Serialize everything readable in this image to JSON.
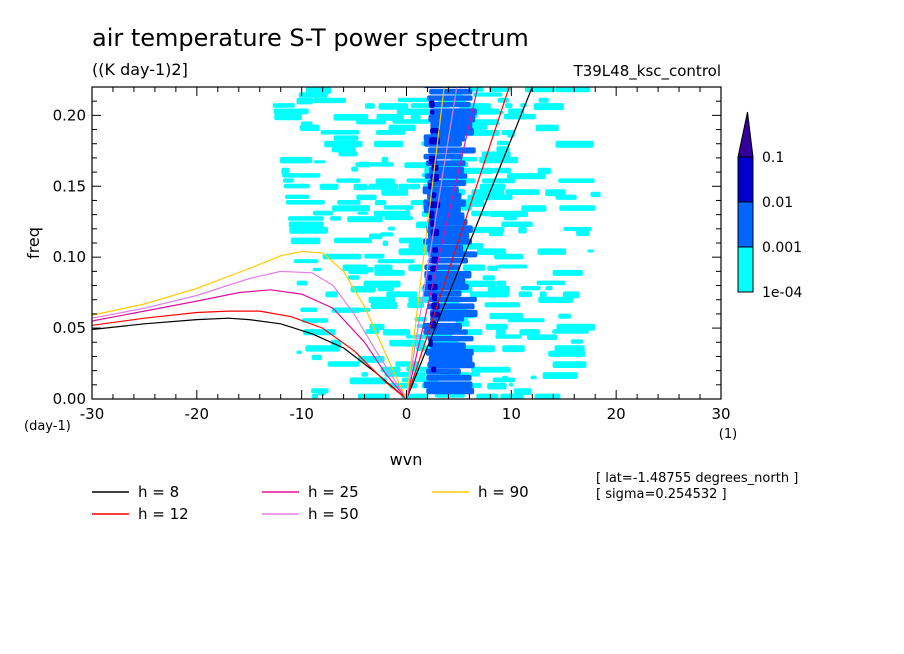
{
  "chart_data": {
    "type": "heatmap",
    "title": "air temperature S-T power spectrum",
    "subtitle": "((K day-1)2]",
    "run_label": "T39L48_ksc_control",
    "xlabel": "wvn",
    "ylabel": "freq",
    "x_unit": "(1)",
    "y_unit": "(day-1)",
    "xlim": [
      -30,
      30
    ],
    "ylim": [
      0,
      0.22
    ],
    "xticks": [
      "-30",
      "-20",
      "-10",
      "0",
      "10",
      "20",
      "30"
    ],
    "yticks": [
      "0.00",
      "0.05",
      "0.10",
      "0.15",
      "0.20"
    ],
    "info_lines": [
      "[ lat=-1.48755 degrees_north ]",
      "[ sigma=0.254532 ]"
    ],
    "colorbar": {
      "labels": [
        "0.1",
        "0.01",
        "0.001",
        "1e-04"
      ],
      "levels": [
        0.0001,
        0.001,
        0.01,
        0.1
      ],
      "colors": [
        "#00ffff",
        "#0066ff",
        "#0000cc",
        "#330099"
      ]
    },
    "spectrum_bands": [
      {
        "level": "1e-04",
        "color": "#00ffff",
        "x_range_low_freq": [
          -9,
          15
        ],
        "x_range_high_freq": [
          -13,
          15
        ]
      },
      {
        "level": "0.001",
        "color": "#0066ff",
        "x_range": [
          1.5,
          7
        ]
      },
      {
        "level": "0.01",
        "color": "#0000cc",
        "x_range": [
          2,
          3.5
        ]
      }
    ],
    "series": [
      {
        "name": "h = 8",
        "color": "#000000",
        "west_x": [
          -30,
          -25,
          -20,
          -17,
          -15,
          -12,
          -9,
          -6,
          -3,
          0
        ],
        "west_y": [
          0.049,
          0.053,
          0.056,
          0.057,
          0.056,
          0.053,
          0.046,
          0.036,
          0.019,
          0.0
        ],
        "east_x": [
          0,
          12
        ],
        "east_y": [
          0,
          0.22
        ]
      },
      {
        "name": "h = 12",
        "color": "#ff0000",
        "west_x": [
          -30,
          -25,
          -20,
          -17,
          -14,
          -11,
          -8,
          -5,
          -2,
          0
        ],
        "west_y": [
          0.052,
          0.057,
          0.061,
          0.062,
          0.062,
          0.058,
          0.05,
          0.034,
          0.012,
          0.0
        ],
        "east_x": [
          0,
          9.8
        ],
        "east_y": [
          0,
          0.22
        ]
      },
      {
        "name": "h = 25",
        "color": "#e0109a",
        "west_x": [
          -30,
          -25,
          -20,
          -16,
          -13,
          -10,
          -7,
          -4,
          -2,
          0
        ],
        "west_y": [
          0.055,
          0.062,
          0.069,
          0.075,
          0.077,
          0.074,
          0.064,
          0.04,
          0.018,
          0.0
        ],
        "east_x": [
          0,
          6.8
        ],
        "east_y": [
          0,
          0.22
        ]
      },
      {
        "name": "h = 50",
        "color": "#e080e0",
        "west_x": [
          -30,
          -25,
          -20,
          -15,
          -12,
          -9,
          -7,
          -5,
          -3,
          0
        ],
        "west_y": [
          0.057,
          0.064,
          0.073,
          0.085,
          0.09,
          0.089,
          0.08,
          0.06,
          0.035,
          0.0
        ],
        "east_x": [
          0,
          4.8
        ],
        "east_y": [
          0,
          0.22
        ]
      },
      {
        "name": "h = 90",
        "color": "#ffcc00",
        "west_x": [
          -30,
          -25,
          -20,
          -15,
          -12,
          -10,
          -8,
          -6,
          -4,
          -2,
          0
        ],
        "west_y": [
          0.059,
          0.067,
          0.078,
          0.092,
          0.101,
          0.104,
          0.103,
          0.09,
          0.065,
          0.032,
          0.0
        ],
        "east_x": [
          0,
          3.6
        ],
        "east_y": [
          0,
          0.22
        ]
      }
    ]
  }
}
